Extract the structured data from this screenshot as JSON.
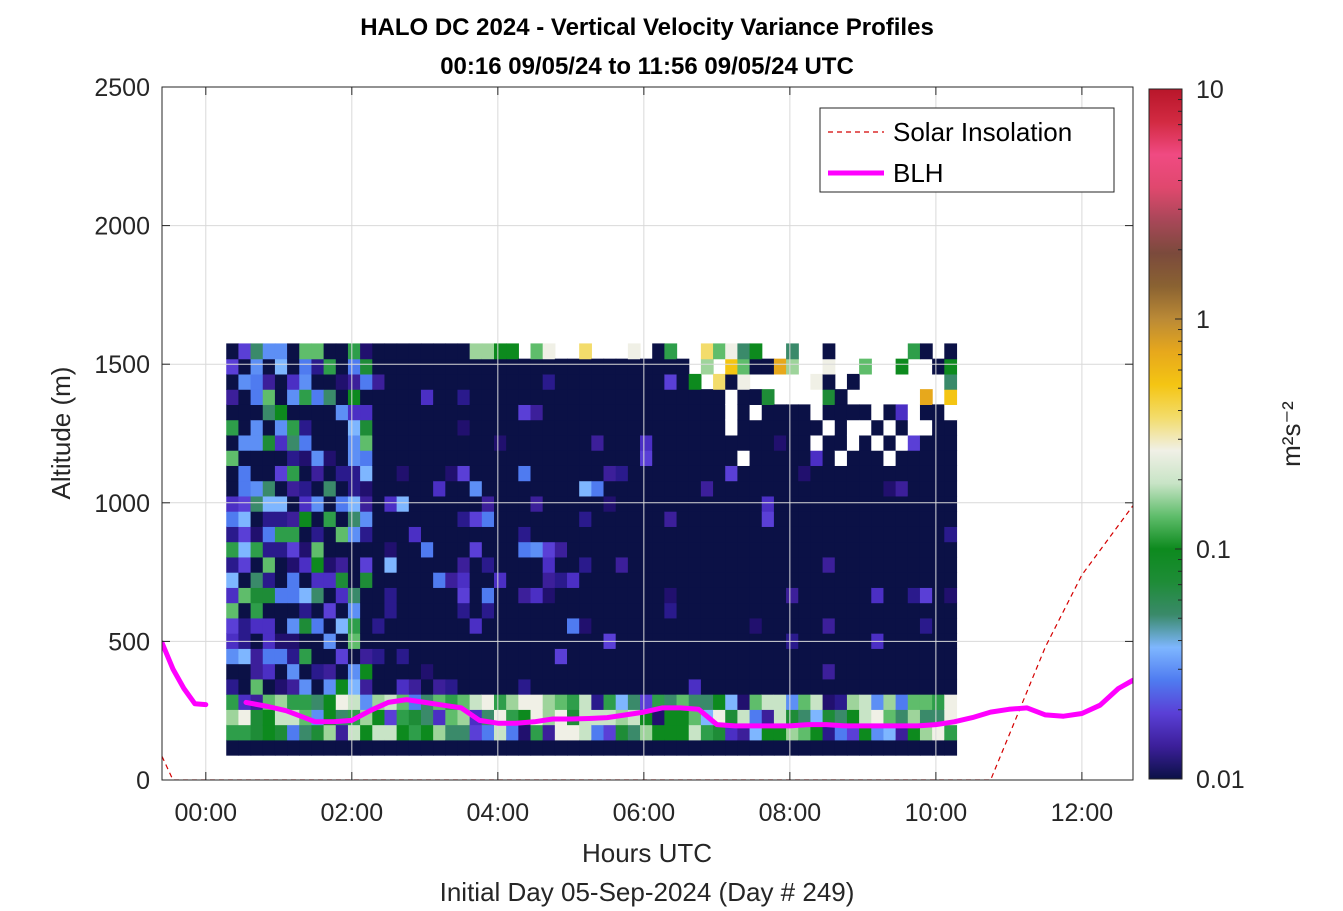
{
  "chart_data": {
    "type": "heatmap",
    "title": "HALO DC 2024 - Vertical Velocity Variance Profiles",
    "subtitle": "00:16 09/05/24 to 11:56 09/05/24  UTC",
    "xlabel": "Hours UTC",
    "xlabel_sub": "Initial Day 05-Sep-2024 (Day # 249)",
    "ylabel": "Altitude (m)",
    "colorbar_label": "m²s⁻²",
    "x_range_hours": [
      -0.6,
      12.7
    ],
    "y_range_m": [
      0,
      2500
    ],
    "x_ticks": [
      {
        "value": 0,
        "label": "00:00"
      },
      {
        "value": 2,
        "label": "02:00"
      },
      {
        "value": 4,
        "label": "04:00"
      },
      {
        "value": 6,
        "label": "06:00"
      },
      {
        "value": 8,
        "label": "08:00"
      },
      {
        "value": 10,
        "label": "10:00"
      },
      {
        "value": 12,
        "label": "12:00"
      }
    ],
    "y_ticks": [
      {
        "value": 0,
        "label": "0"
      },
      {
        "value": 500,
        "label": "500"
      },
      {
        "value": 1000,
        "label": "1000"
      },
      {
        "value": 1500,
        "label": "1500"
      },
      {
        "value": 2000,
        "label": "2000"
      },
      {
        "value": 2500,
        "label": "2500"
      }
    ],
    "colorbar": {
      "scale": "log",
      "range": [
        0.01,
        10
      ],
      "ticks": [
        {
          "value": 0.01,
          "label": "0.01"
        },
        {
          "value": 0.1,
          "label": "0.1"
        },
        {
          "value": 1,
          "label": "1"
        },
        {
          "value": 10,
          "label": "10"
        }
      ],
      "colormap": [
        "#0b1146",
        "#3c1f9a",
        "#5a3fd6",
        "#4f7bf0",
        "#7eb6ff",
        "#3a8a6a",
        "#1e8c37",
        "#0d8a1e",
        "#5fbd6b",
        "#c8e4c6",
        "#f0f0e6",
        "#f3dc6b",
        "#f4c513",
        "#e7a81c",
        "#bb8a36",
        "#8a6232",
        "#7b4a3c",
        "#a84758",
        "#e0486e",
        "#f04a82",
        "#d22a42",
        "#b8162a"
      ]
    },
    "grid": true,
    "legend_position": "top-right",
    "legend": [
      {
        "name": "Solar Insolation",
        "color": "#d40000",
        "style": "dashed"
      },
      {
        "name": "BLH",
        "color": "#ff00ff",
        "style": "solid"
      }
    ],
    "heatmap": {
      "t0_hours": 0.28,
      "dt_hours": 0.1667,
      "alt0_m": 90,
      "dalt_m": 55,
      "n_time": 60,
      "n_alt": 27,
      "pattern_seed": 7
    },
    "series": [
      {
        "name": "BLH",
        "x": [
          -0.6,
          -0.45,
          -0.3,
          -0.15,
          0.0,
          0.25,
          0.55,
          0.85,
          1.1,
          1.3,
          1.5,
          1.75,
          2.0,
          2.25,
          2.5,
          2.75,
          3.0,
          3.25,
          3.5,
          3.75,
          4.0,
          4.25,
          4.5,
          4.75,
          5.0,
          5.25,
          5.5,
          5.75,
          6.0,
          6.25,
          6.5,
          6.75,
          7.0,
          7.25,
          7.5,
          7.75,
          8.0,
          8.25,
          8.5,
          8.75,
          9.0,
          9.25,
          9.5,
          9.75,
          10.0,
          10.25,
          10.5,
          10.75,
          11.0,
          11.25,
          11.5,
          11.75,
          12.0,
          12.25,
          12.5,
          12.7
        ],
        "y": [
          495,
          400,
          330,
          275,
          272,
          null,
          280,
          265,
          250,
          230,
          210,
          210,
          215,
          250,
          280,
          290,
          280,
          270,
          260,
          215,
          205,
          205,
          210,
          220,
          220,
          222,
          225,
          235,
          245,
          260,
          260,
          255,
          200,
          195,
          195,
          195,
          195,
          200,
          200,
          195,
          195,
          195,
          195,
          195,
          200,
          210,
          225,
          245,
          255,
          260,
          235,
          230,
          240,
          270,
          330,
          360
        ]
      },
      {
        "name": "Solar Insolation",
        "x": [
          -0.6,
          -0.45,
          0.0,
          2.0,
          4.0,
          6.0,
          8.0,
          10.0,
          10.75,
          11.0,
          11.5,
          12.0,
          12.7
        ],
        "y": [
          85,
          0,
          0,
          0,
          0,
          0,
          0,
          0,
          0,
          160,
          480,
          740,
          990
        ]
      }
    ]
  }
}
